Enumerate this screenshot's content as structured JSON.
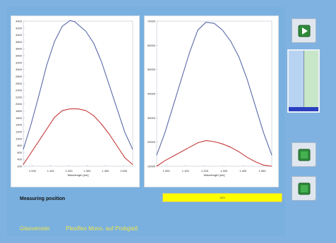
{
  "labels": {
    "measuring_position": "Measuring position",
    "progress_text": "16%",
    "footer_left": "Glasvenster",
    "footer_right": "Plexiflex Mono. auf Probglaß"
  },
  "progress": {
    "value_percent": 16,
    "color": "#ffff00"
  },
  "icons": {
    "play": "play-icon",
    "button_a": "green-square-icon",
    "button_b": "green-square-icon"
  },
  "colors": {
    "background": "#7fb2e1",
    "chart_blue": "#5b6aa8",
    "chart_red": "#c63a3a",
    "button_green": "#2e8a3a",
    "footer_text": "#f0e64b"
  },
  "chart_data": [
    {
      "type": "line",
      "xlabel": "Wavelength [nm]",
      "ylabel": "",
      "xlim": [
        950,
        1650
      ],
      "x_ticks": [
        "1.000",
        "1.100",
        "1.200",
        "1.300",
        "1.400",
        "1.500"
      ],
      "y_ticks": [
        "4400",
        "4200",
        "4000",
        "3800",
        "3600",
        "3400",
        "3200",
        "3000",
        "2800",
        "2600",
        "2400",
        "2200",
        "2000",
        "1800",
        "1600",
        "1400",
        "1200",
        "1000",
        "800",
        "600",
        "400",
        "200"
      ],
      "ylim": [
        200,
        4500
      ],
      "series": [
        {
          "name": "",
          "color": "#5b6aa8",
          "x": [
            950,
            1000,
            1050,
            1100,
            1150,
            1200,
            1250,
            1280,
            1300,
            1350,
            1400,
            1450,
            1500,
            1550,
            1600,
            1650
          ],
          "y": [
            700,
            1450,
            2300,
            3200,
            3900,
            4350,
            4520,
            4480,
            4400,
            4200,
            3850,
            3300,
            2600,
            1900,
            1200,
            700
          ]
        },
        {
          "name": "",
          "color": "#c63a3a",
          "x": [
            950,
            1000,
            1050,
            1100,
            1150,
            1200,
            1250,
            1300,
            1350,
            1400,
            1450,
            1500,
            1550,
            1600,
            1650
          ],
          "y": [
            250,
            600,
            950,
            1300,
            1650,
            1850,
            1900,
            1900,
            1850,
            1700,
            1450,
            1150,
            800,
            450,
            250
          ]
        }
      ]
    },
    {
      "type": "line",
      "xlabel": "Wavelength [nm]",
      "ylabel": "",
      "xlim": [
        950,
        1650
      ],
      "x_ticks": [
        "1.000",
        "1.100",
        "1.200",
        "1.300",
        "1.400",
        "1.500"
      ],
      "y_ticks": [
        "70000",
        "60000",
        "50000",
        "40000",
        "30000",
        "20000",
        "10000"
      ],
      "ylim": [
        7000,
        72000
      ],
      "series": [
        {
          "name": "",
          "color": "#5b6aa8",
          "x": [
            950,
            1000,
            1050,
            1100,
            1150,
            1200,
            1250,
            1300,
            1350,
            1400,
            1450,
            1500,
            1550,
            1600,
            1650
          ],
          "y": [
            12000,
            22000,
            34000,
            46000,
            58000,
            68000,
            71500,
            71000,
            68000,
            63000,
            56000,
            46000,
            34000,
            22000,
            12000
          ]
        },
        {
          "name": "",
          "color": "#c63a3a",
          "x": [
            950,
            1000,
            1050,
            1100,
            1150,
            1200,
            1250,
            1300,
            1350,
            1400,
            1450,
            1500,
            1550,
            1600,
            1650
          ],
          "y": [
            7000,
            9500,
            11500,
            13500,
            15500,
            17500,
            18500,
            18000,
            17000,
            15500,
            13500,
            11000,
            9000,
            7500,
            7000
          ]
        }
      ]
    }
  ]
}
